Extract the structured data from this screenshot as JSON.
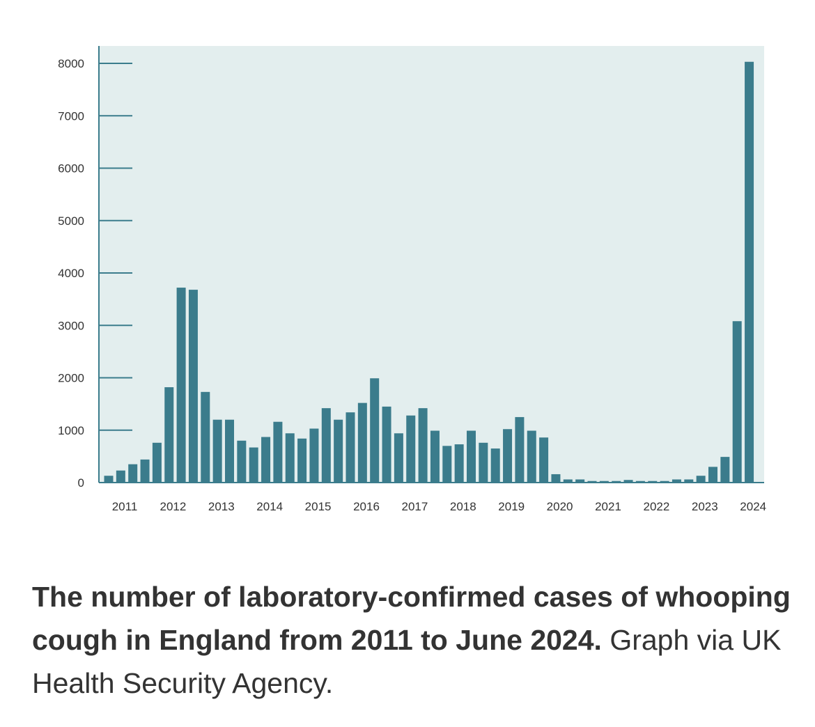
{
  "chart_data": {
    "type": "bar",
    "title": "",
    "xlabel": "",
    "ylabel": "",
    "ylim": [
      0,
      8300
    ],
    "y_ticks": [
      0,
      1000,
      2000,
      3000,
      4000,
      5000,
      6000,
      7000,
      8000
    ],
    "x_tick_labels": [
      "2011",
      "2012",
      "2013",
      "2014",
      "2015",
      "2016",
      "2017",
      "2018",
      "2019",
      "2020",
      "2021",
      "2022",
      "2023",
      "2024"
    ],
    "grid": false,
    "values": [
      130,
      230,
      350,
      440,
      760,
      1820,
      3720,
      3680,
      1730,
      1200,
      1200,
      800,
      670,
      870,
      1160,
      940,
      840,
      1030,
      1420,
      1200,
      1340,
      1520,
      1990,
      1450,
      940,
      1280,
      1420,
      990,
      700,
      730,
      990,
      760,
      650,
      1020,
      1250,
      990,
      860,
      160,
      60,
      60,
      30,
      30,
      30,
      50,
      30,
      30,
      30,
      60,
      60,
      130,
      300,
      490,
      3080,
      8030
    ],
    "colors": {
      "bar": "#3b7c8c",
      "plot_background": "#e3eeee",
      "axis": "#3b7c8c"
    }
  },
  "caption": {
    "bold_text": "The number of laboratory-confirmed cases of whooping cough in England from 2011 to June 2024.",
    "credit_text": " Graph via UK Health Security Agency."
  }
}
